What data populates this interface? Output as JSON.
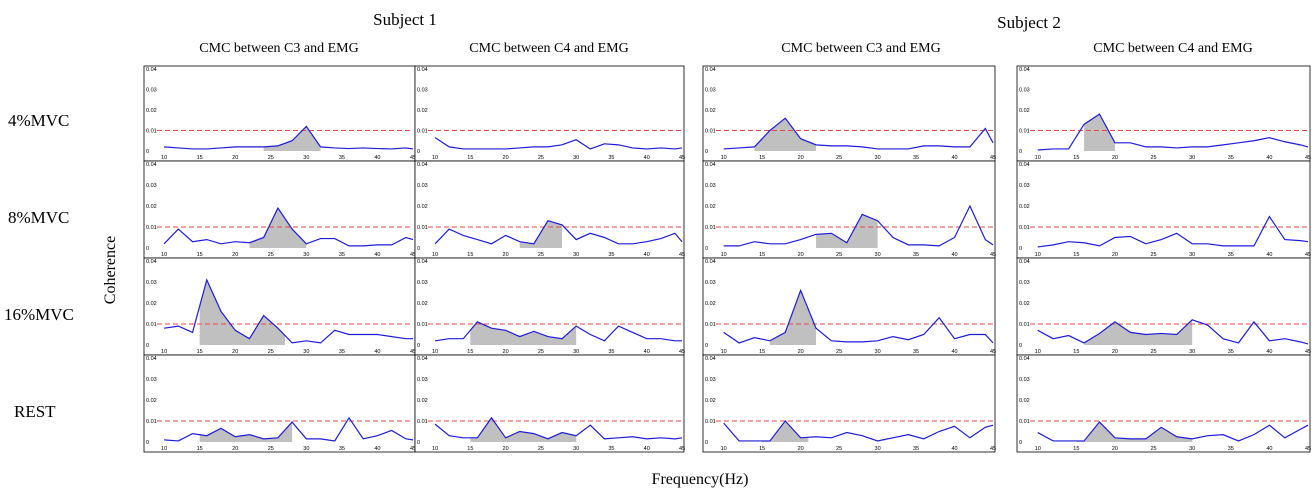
{
  "figure": {
    "subjects": [
      "Subject 1",
      "Subject 2"
    ],
    "columns": [
      "CMC between C3 and EMG",
      "CMC between C4 and EMG",
      "CMC between C3 and EMG",
      "CMC between C4 and EMG"
    ],
    "rows": [
      "4%MVC",
      "8%MVC",
      "16%MVC",
      "REST"
    ],
    "ylabel": "Coherence",
    "xlabel": "Frequency(Hz)"
  },
  "colors": {
    "line": "#1c1cd6",
    "threshold": "#e34a4a",
    "fill": "#c0c0c0",
    "frame": "#000000"
  },
  "chart_data": {
    "type": "line",
    "layout": "4x4 grid of line plots (rows: 4%MVC, 8%MVC, 16%MVC, REST; columns: Subject 1 C3, Subject 1 C4, Subject 2 C3, Subject 2 C4)",
    "x": [
      10,
      12,
      14,
      16,
      18,
      20,
      22,
      24,
      26,
      28,
      30,
      32,
      34,
      36,
      38,
      40,
      42,
      44,
      45
    ],
    "xlim": [
      9,
      45
    ],
    "ylim": [
      0,
      0.04
    ],
    "xticks": [
      10,
      15,
      20,
      25,
      30,
      35,
      40,
      45
    ],
    "yticks": [
      0,
      0.01,
      0.02,
      0.03,
      0.04
    ],
    "ytick_labels": [
      "0",
      "0.01",
      "0.02",
      "0.03",
      "0.04"
    ],
    "threshold": 0.01,
    "grid": false,
    "panels": [
      {
        "row": 0,
        "col": 0,
        "values": [
          0.002,
          0.0015,
          0.001,
          0.001,
          0.0015,
          0.002,
          0.002,
          0.002,
          0.0025,
          0.005,
          0.012,
          0.002,
          0.0015,
          0.0012,
          0.0015,
          0.0012,
          0.001,
          0.0015,
          0.001
        ],
        "fill_range": [
          24,
          32
        ]
      },
      {
        "row": 0,
        "col": 1,
        "values": [
          0.0065,
          0.002,
          0.001,
          0.001,
          0.001,
          0.001,
          0.0015,
          0.002,
          0.002,
          0.003,
          0.0055,
          0.001,
          0.0035,
          0.003,
          0.0015,
          0.001,
          0.0015,
          0.001,
          0.0015
        ],
        "fill_range": null
      },
      {
        "row": 0,
        "col": 2,
        "values": [
          0.001,
          0.0015,
          0.002,
          0.01,
          0.016,
          0.006,
          0.003,
          0.0025,
          0.0025,
          0.002,
          0.001,
          0.001,
          0.001,
          0.0025,
          0.0025,
          0.002,
          0.002,
          0.011,
          0.004
        ],
        "fill_range": [
          14,
          22
        ]
      },
      {
        "row": 0,
        "col": 3,
        "values": [
          0.0005,
          0.001,
          0.001,
          0.013,
          0.018,
          0.004,
          0.004,
          0.002,
          0.002,
          0.0015,
          0.002,
          0.002,
          0.003,
          0.004,
          0.005,
          0.0065,
          0.0045,
          0.003,
          0.002
        ],
        "fill_range": [
          16,
          20
        ]
      },
      {
        "row": 1,
        "col": 0,
        "values": [
          0.002,
          0.009,
          0.003,
          0.004,
          0.002,
          0.003,
          0.0025,
          0.005,
          0.019,
          0.009,
          0.002,
          0.0045,
          0.0045,
          0.001,
          0.001,
          0.0015,
          0.0015,
          0.005,
          0.004
        ],
        "fill_range": [
          22,
          30
        ]
      },
      {
        "row": 1,
        "col": 1,
        "values": [
          0.002,
          0.009,
          0.006,
          0.004,
          0.002,
          0.006,
          0.003,
          0.002,
          0.013,
          0.011,
          0.004,
          0.007,
          0.005,
          0.002,
          0.002,
          0.003,
          0.0045,
          0.007,
          0.003
        ],
        "fill_range": [
          22,
          28
        ]
      },
      {
        "row": 1,
        "col": 2,
        "values": [
          0.001,
          0.001,
          0.003,
          0.002,
          0.002,
          0.004,
          0.0065,
          0.007,
          0.0025,
          0.016,
          0.013,
          0.005,
          0.0015,
          0.0015,
          0.001,
          0.005,
          0.02,
          0.004,
          0.0015
        ],
        "fill_range": [
          22,
          30
        ]
      },
      {
        "row": 1,
        "col": 3,
        "values": [
          0.0005,
          0.0015,
          0.003,
          0.0025,
          0.001,
          0.005,
          0.0055,
          0.002,
          0.004,
          0.007,
          0.002,
          0.002,
          0.001,
          0.001,
          0.001,
          0.015,
          0.004,
          0.0035,
          0.003
        ],
        "fill_range": null
      },
      {
        "row": 2,
        "col": 0,
        "values": [
          0.008,
          0.009,
          0.006,
          0.031,
          0.016,
          0.007,
          0.003,
          0.014,
          0.008,
          0.001,
          0.002,
          0.001,
          0.007,
          0.005,
          0.005,
          0.005,
          0.004,
          0.003,
          0.003
        ],
        "fill_range": [
          15,
          27
        ]
      },
      {
        "row": 2,
        "col": 1,
        "values": [
          0.002,
          0.003,
          0.003,
          0.011,
          0.008,
          0.007,
          0.004,
          0.0065,
          0.004,
          0.003,
          0.009,
          0.005,
          0.002,
          0.009,
          0.006,
          0.003,
          0.003,
          0.002,
          0.002
        ],
        "fill_range": [
          15,
          30
        ]
      },
      {
        "row": 2,
        "col": 2,
        "values": [
          0.006,
          0.001,
          0.0035,
          0.002,
          0.006,
          0.026,
          0.008,
          0.002,
          0.0015,
          0.0015,
          0.002,
          0.004,
          0.0025,
          0.005,
          0.013,
          0.003,
          0.005,
          0.005,
          0.001
        ],
        "fill_range": [
          16,
          22
        ]
      },
      {
        "row": 2,
        "col": 3,
        "values": [
          0.007,
          0.003,
          0.0045,
          0.001,
          0.0055,
          0.011,
          0.006,
          0.005,
          0.0055,
          0.005,
          0.012,
          0.0095,
          0.003,
          0.001,
          0.011,
          0.002,
          0.003,
          0.0015,
          0.0005
        ],
        "fill_range": [
          16,
          30
        ]
      },
      {
        "row": 3,
        "col": 0,
        "values": [
          0.001,
          0.0005,
          0.004,
          0.003,
          0.0065,
          0.0025,
          0.0035,
          0.0015,
          0.002,
          0.0095,
          0.0015,
          0.0015,
          0.0005,
          0.0115,
          0.0015,
          0.003,
          0.0055,
          0.0015,
          0.001
        ],
        "fill_range": [
          15,
          28
        ]
      },
      {
        "row": 3,
        "col": 1,
        "values": [
          0.0085,
          0.003,
          0.002,
          0.002,
          0.0115,
          0.002,
          0.005,
          0.004,
          0.0015,
          0.0045,
          0.003,
          0.008,
          0.0015,
          0.002,
          0.0025,
          0.0015,
          0.002,
          0.0015,
          0.002
        ],
        "fill_range": [
          15,
          30
        ]
      },
      {
        "row": 3,
        "col": 2,
        "values": [
          0.009,
          0.0005,
          0.0005,
          0.0005,
          0.01,
          0.002,
          0.0025,
          0.002,
          0.0045,
          0.003,
          0.0005,
          0.002,
          0.0035,
          0.0015,
          0.005,
          0.0075,
          0.002,
          0.007,
          0.008
        ],
        "fill_range": [
          15,
          21
        ]
      },
      {
        "row": 3,
        "col": 3,
        "values": [
          0.0045,
          0.0005,
          0.0005,
          0.0005,
          0.0095,
          0.002,
          0.0015,
          0.0015,
          0.007,
          0.0025,
          0.0015,
          0.003,
          0.0035,
          0.0005,
          0.0035,
          0.008,
          0.002,
          0.006,
          0.008
        ],
        "fill_range": [
          15,
          30
        ]
      }
    ]
  }
}
